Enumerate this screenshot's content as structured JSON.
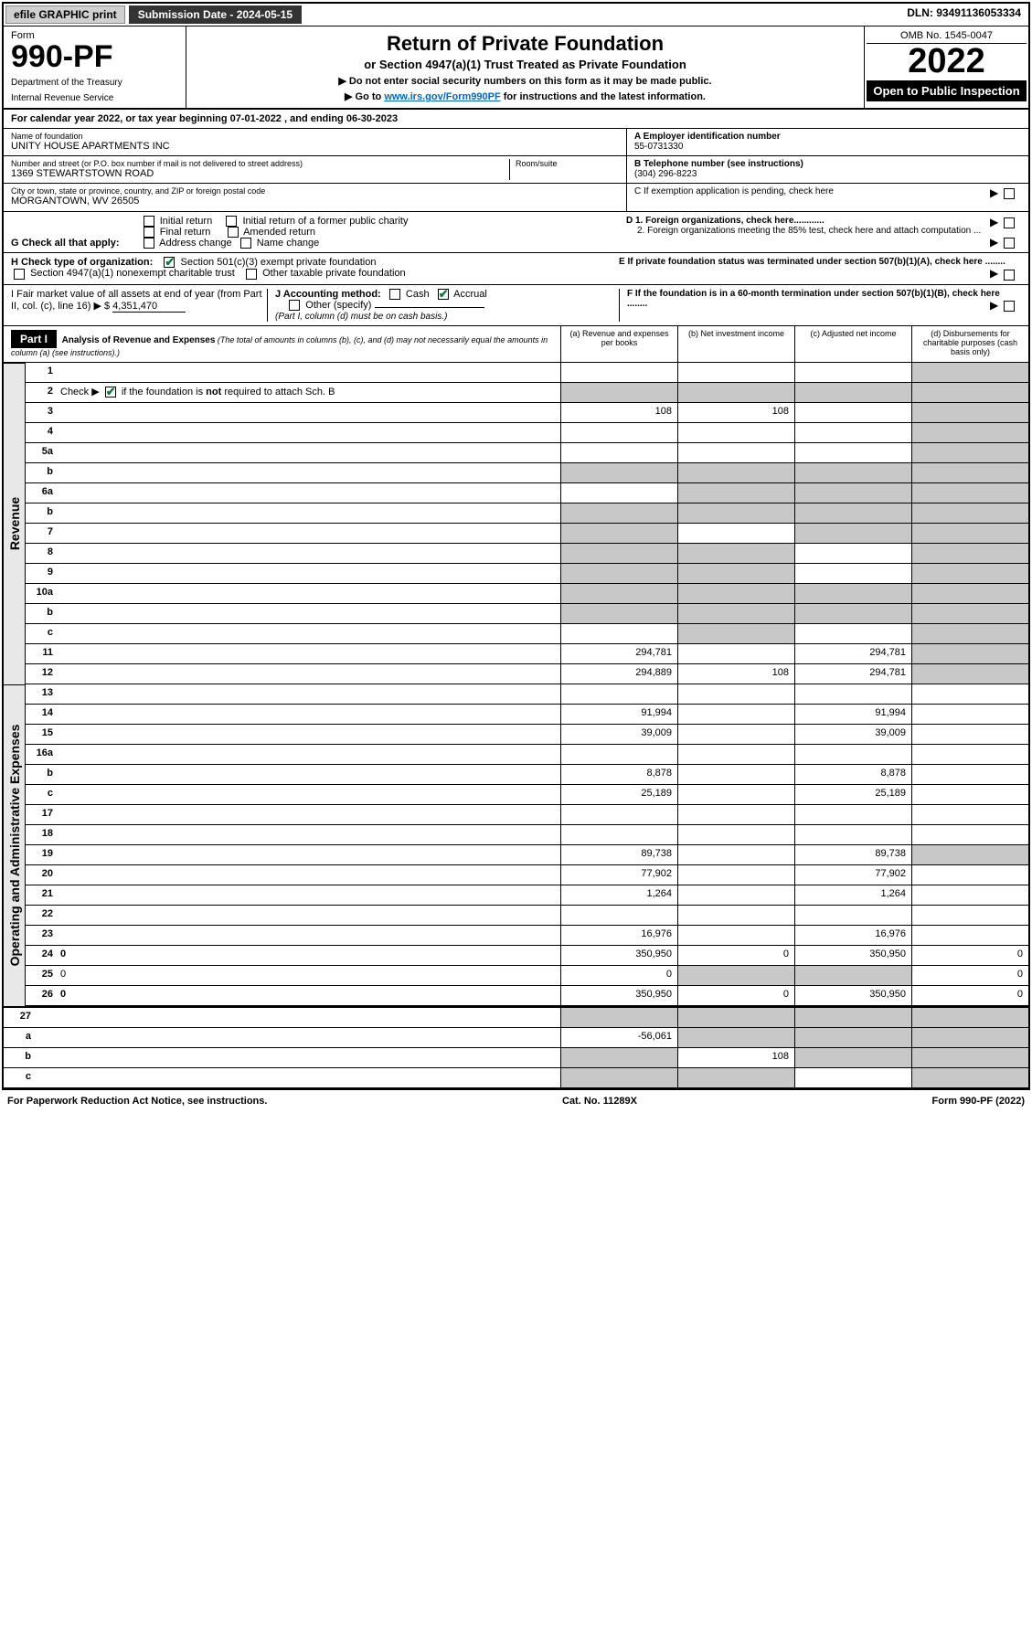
{
  "topbar": {
    "efile": "efile GRAPHIC print",
    "submission_label": "Submission Date - 2024-05-15",
    "dln_label": "DLN: 93491136053334"
  },
  "header": {
    "form_word": "Form",
    "form_no": "990-PF",
    "dept": "Department of the Treasury",
    "irs": "Internal Revenue Service",
    "title": "Return of Private Foundation",
    "subtitle": "or Section 4947(a)(1) Trust Treated as Private Foundation",
    "note1": "▶ Do not enter social security numbers on this form as it may be made public.",
    "note2_pre": "▶ Go to ",
    "note2_link": "www.irs.gov/Form990PF",
    "note2_post": " for instructions and the latest information.",
    "omb": "OMB No. 1545-0047",
    "year": "2022",
    "open": "Open to Public Inspection"
  },
  "cal_year": {
    "text_pre": "For calendar year 2022, or tax year beginning ",
    "begin": "07-01-2022",
    "mid": " , and ending ",
    "end": "06-30-2023"
  },
  "foundation": {
    "name_label": "Name of foundation",
    "name": "UNITY HOUSE APARTMENTS INC",
    "addr_label": "Number and street (or P.O. box number if mail is not delivered to street address)",
    "addr": "1369 STEWARTSTOWN ROAD",
    "room_label": "Room/suite",
    "city_label": "City or town, state or province, country, and ZIP or foreign postal code",
    "city": "MORGANTOWN, WV  26505"
  },
  "right_info": {
    "a_label": "A Employer identification number",
    "ein": "55-0731330",
    "b_label": "B Telephone number (see instructions)",
    "phone": "(304) 296-8223",
    "c_label": "C If exemption application is pending, check here",
    "d1_label": "D 1. Foreign organizations, check here............",
    "d2_label": "2. Foreign organizations meeting the 85% test, check here and attach computation ...",
    "e_label": "E  If private foundation status was terminated under section 507(b)(1)(A), check here ........",
    "f_label": "F  If the foundation is in a 60-month termination under section 507(b)(1)(B), check here ........"
  },
  "g": {
    "label": "G Check all that apply:",
    "opts": [
      "Initial return",
      "Final return",
      "Address change",
      "Initial return of a former public charity",
      "Amended return",
      "Name change"
    ]
  },
  "h": {
    "label": "H Check type of organization:",
    "opt1": "Section 501(c)(3) exempt private foundation",
    "opt2": "Section 4947(a)(1) nonexempt charitable trust",
    "opt3": "Other taxable private foundation"
  },
  "i": {
    "label_pre": "I Fair market value of all assets at end of year (from Part II, col. (c), line 16) ▶ $ ",
    "value": "4,351,470"
  },
  "j": {
    "label": "J Accounting method:",
    "cash": "Cash",
    "accrual": "Accrual",
    "other": "Other (specify)",
    "note": "(Part I, column (d) must be on cash basis.)"
  },
  "part1": {
    "label": "Part I",
    "title": "Analysis of Revenue and Expenses",
    "title_note": " (The total of amounts in columns (b), (c), and (d) may not necessarily equal the amounts in column (a) (see instructions).)",
    "col_a": "(a)    Revenue and expenses per books",
    "col_b": "(b)   Net investment income",
    "col_c": "(c)   Adjusted net income",
    "col_d": "(d)   Disbursements for charitable purposes (cash basis only)"
  },
  "side_labels": {
    "revenue": "Revenue",
    "expenses": "Operating and Administrative Expenses"
  },
  "rows": [
    {
      "n": "1",
      "d": "",
      "a": "",
      "b": "",
      "c": "",
      "shade": [
        "d"
      ]
    },
    {
      "n": "2",
      "d": "",
      "a": "",
      "b": "",
      "c": "",
      "shade": [
        "a",
        "b",
        "c",
        "d"
      ],
      "checkbox": true
    },
    {
      "n": "3",
      "d": "",
      "a": "108",
      "b": "108",
      "c": "",
      "shade": [
        "d"
      ]
    },
    {
      "n": "4",
      "d": "",
      "a": "",
      "b": "",
      "c": "",
      "shade": [
        "d"
      ]
    },
    {
      "n": "5a",
      "d": "",
      "a": "",
      "b": "",
      "c": "",
      "shade": [
        "d"
      ]
    },
    {
      "n": "b",
      "d": "",
      "a": "",
      "b": "",
      "c": "",
      "shade": [
        "a",
        "b",
        "c",
        "d"
      ]
    },
    {
      "n": "6a",
      "d": "",
      "a": "",
      "b": "",
      "c": "",
      "shade": [
        "b",
        "c",
        "d"
      ]
    },
    {
      "n": "b",
      "d": "",
      "a": "",
      "b": "",
      "c": "",
      "shade": [
        "a",
        "b",
        "c",
        "d"
      ]
    },
    {
      "n": "7",
      "d": "",
      "a": "",
      "b": "",
      "c": "",
      "shade": [
        "a",
        "c",
        "d"
      ]
    },
    {
      "n": "8",
      "d": "",
      "a": "",
      "b": "",
      "c": "",
      "shade": [
        "a",
        "b",
        "d"
      ]
    },
    {
      "n": "9",
      "d": "",
      "a": "",
      "b": "",
      "c": "",
      "shade": [
        "a",
        "b",
        "d"
      ]
    },
    {
      "n": "10a",
      "d": "",
      "a": "",
      "b": "",
      "c": "",
      "shade": [
        "a",
        "b",
        "c",
        "d"
      ]
    },
    {
      "n": "b",
      "d": "",
      "a": "",
      "b": "",
      "c": "",
      "shade": [
        "a",
        "b",
        "c",
        "d"
      ]
    },
    {
      "n": "c",
      "d": "",
      "a": "",
      "b": "",
      "c": "",
      "shade": [
        "b",
        "d"
      ]
    },
    {
      "n": "11",
      "d": "",
      "a": "294,781",
      "b": "",
      "c": "294,781",
      "shade": [
        "d"
      ]
    },
    {
      "n": "12",
      "d": "",
      "a": "294,889",
      "b": "108",
      "c": "294,781",
      "bold": true,
      "shade": [
        "d"
      ]
    }
  ],
  "exp_rows": [
    {
      "n": "13",
      "d": "",
      "a": "",
      "b": "",
      "c": ""
    },
    {
      "n": "14",
      "d": "",
      "a": "91,994",
      "b": "",
      "c": "91,994"
    },
    {
      "n": "15",
      "d": "",
      "a": "39,009",
      "b": "",
      "c": "39,009"
    },
    {
      "n": "16a",
      "d": "",
      "a": "",
      "b": "",
      "c": ""
    },
    {
      "n": "b",
      "d": "",
      "a": "8,878",
      "b": "",
      "c": "8,878"
    },
    {
      "n": "c",
      "d": "",
      "a": "25,189",
      "b": "",
      "c": "25,189"
    },
    {
      "n": "17",
      "d": "",
      "a": "",
      "b": "",
      "c": ""
    },
    {
      "n": "18",
      "d": "",
      "a": "",
      "b": "",
      "c": ""
    },
    {
      "n": "19",
      "d": "",
      "a": "89,738",
      "b": "",
      "c": "89,738",
      "shade": [
        "d"
      ]
    },
    {
      "n": "20",
      "d": "",
      "a": "77,902",
      "b": "",
      "c": "77,902"
    },
    {
      "n": "21",
      "d": "",
      "a": "1,264",
      "b": "",
      "c": "1,264"
    },
    {
      "n": "22",
      "d": "",
      "a": "",
      "b": "",
      "c": ""
    },
    {
      "n": "23",
      "d": "",
      "a": "16,976",
      "b": "",
      "c": "16,976"
    },
    {
      "n": "24",
      "d": "0",
      "a": "350,950",
      "b": "0",
      "c": "350,950",
      "bold": true
    },
    {
      "n": "25",
      "d": "0",
      "a": "0",
      "b": "",
      "c": "",
      "shade": [
        "b",
        "c"
      ]
    },
    {
      "n": "26",
      "d": "0",
      "a": "350,950",
      "b": "0",
      "c": "350,950",
      "bold": true
    }
  ],
  "final_rows": [
    {
      "n": "27",
      "d": "",
      "a": "",
      "b": "",
      "c": "",
      "shade": [
        "a",
        "b",
        "c",
        "d"
      ]
    },
    {
      "n": "a",
      "d": "",
      "a": "-56,061",
      "b": "",
      "c": "",
      "bold": true,
      "shade": [
        "b",
        "c",
        "d"
      ]
    },
    {
      "n": "b",
      "d": "",
      "a": "",
      "b": "108",
      "c": "",
      "bold": true,
      "shade": [
        "a",
        "c",
        "d"
      ]
    },
    {
      "n": "c",
      "d": "",
      "a": "",
      "b": "",
      "c": "",
      "bold": true,
      "shade": [
        "a",
        "b",
        "d"
      ]
    }
  ],
  "footer": {
    "left": "For Paperwork Reduction Act Notice, see instructions.",
    "mid": "Cat. No. 11289X",
    "right": "Form 990-PF (2022)"
  }
}
